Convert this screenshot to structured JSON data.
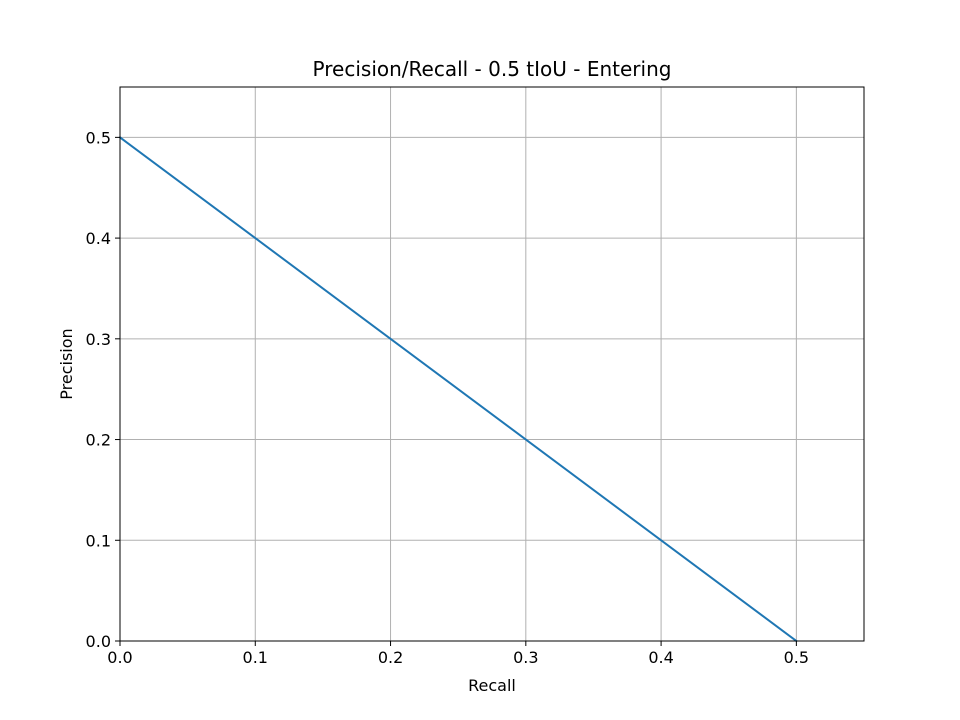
{
  "chart_data": {
    "type": "line",
    "title": "Precision/Recall - 0.5 tIoU - Entering",
    "xlabel": "Recall",
    "ylabel": "Precision",
    "xlim": [
      0,
      0.55
    ],
    "ylim": [
      0,
      0.55
    ],
    "x_ticks": [
      0,
      0.1,
      0.2,
      0.3,
      0.4,
      0.5
    ],
    "x_tick_labels": [
      "0.0",
      "0.1",
      "0.2",
      "0.3",
      "0.4",
      "0.5"
    ],
    "y_ticks": [
      0,
      0.1,
      0.2,
      0.3,
      0.4,
      0.5
    ],
    "y_tick_labels": [
      "0.0",
      "0.1",
      "0.2",
      "0.3",
      "0.4",
      "0.5"
    ],
    "grid": true,
    "series": [
      {
        "color": "#1f77b4",
        "x": [
          0.0,
          0.5
        ],
        "y": [
          0.5,
          0.0
        ]
      }
    ],
    "colors": {
      "grid": "#b0b0b0",
      "axes": "#000000"
    }
  }
}
